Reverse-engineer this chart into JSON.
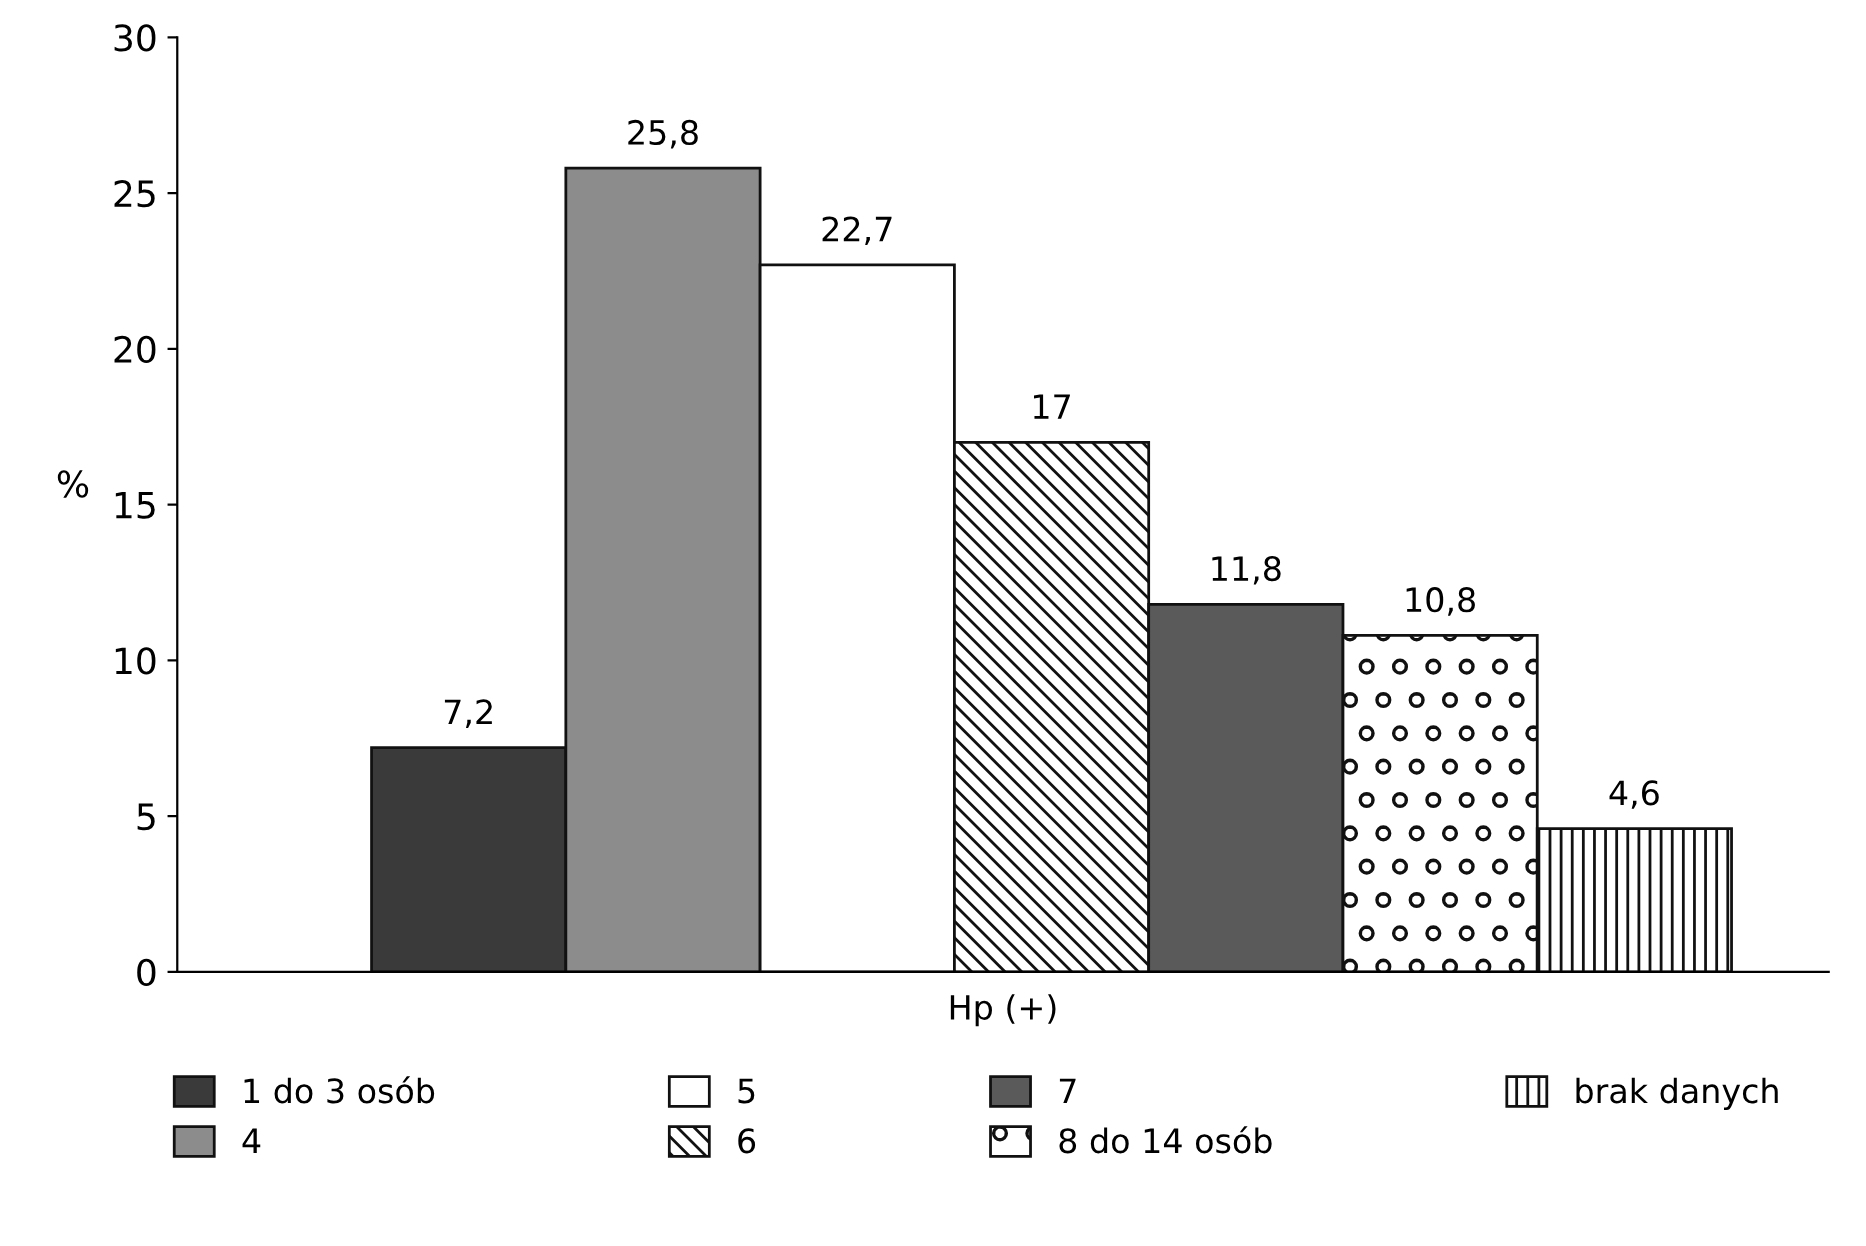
{
  "chart_data": {
    "type": "bar",
    "xlabel": "Hp (+)",
    "ylabel": "%",
    "categories": [
      null
    ],
    "series": [
      {
        "name": "1 do 3 osób",
        "color": "#3a3a3a",
        "values": [
          7.2
        ],
        "value_labels": [
          "7,2"
        ]
      },
      {
        "name": "4",
        "color": "#8c8c8c",
        "values": [
          25.8
        ],
        "value_labels": [
          "25,8"
        ]
      },
      {
        "name": "5",
        "color": "#ffffff",
        "values": [
          22.7
        ],
        "value_labels": [
          "22,7"
        ]
      },
      {
        "name": "6",
        "color": "#111111",
        "values": [
          17
        ],
        "value_labels": [
          "17"
        ]
      },
      {
        "name": "7",
        "color": "#5a5a5a",
        "values": [
          11.8
        ],
        "value_labels": [
          "11,8"
        ]
      },
      {
        "name": "8 do 14 osób",
        "color": "#111111",
        "values": [
          10.8
        ],
        "value_labels": [
          "10,8"
        ]
      },
      {
        "name": "brak danych",
        "color": "#111111",
        "values": [
          4.6
        ],
        "value_labels": [
          "4,6"
        ]
      }
    ],
    "ylim": [
      0,
      30
    ],
    "yticks": [
      0,
      5,
      10,
      15,
      20,
      25,
      30
    ],
    "legend": "bottom",
    "tick_labels": "y"
  }
}
